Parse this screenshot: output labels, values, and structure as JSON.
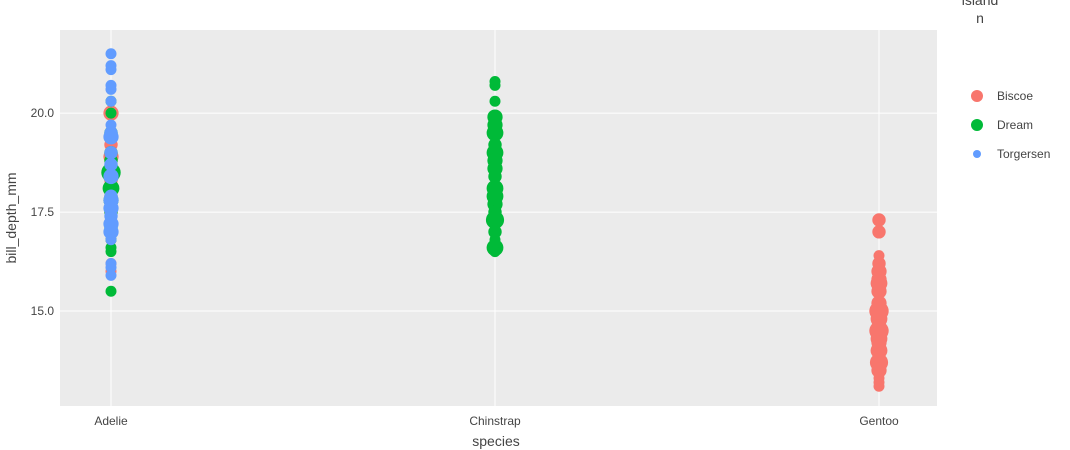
{
  "chart_data": {
    "type": "scatter",
    "xlabel": "species",
    "ylabel": "bill_depth_mm",
    "categories": [
      "Adelie",
      "Chinstrap",
      "Gentoo"
    ],
    "y_ticks": [
      15.0,
      17.5,
      20.0
    ],
    "y_tick_labels": [
      "15.0",
      "17.5",
      "20.0"
    ],
    "ylim": [
      12.6,
      22.1
    ],
    "grid": true,
    "legend": {
      "title_lines": [
        "island",
        "n"
      ],
      "position": "top-right",
      "entries": [
        {
          "name": "Biscoe",
          "color": "#F8766D"
        },
        {
          "name": "Dream",
          "color": "#00BA38"
        },
        {
          "name": "Torgersen",
          "color": "#619CFF"
        }
      ]
    },
    "series": [
      {
        "name": "Biscoe",
        "color": "#F8766D",
        "points": [
          {
            "x": "Adelie",
            "y": 20.0,
            "n": 3
          },
          {
            "x": "Adelie",
            "y": 19.2,
            "n": 2
          },
          {
            "x": "Adelie",
            "y": 18.9,
            "n": 3
          },
          {
            "x": "Adelie",
            "y": 18.6,
            "n": 2
          },
          {
            "x": "Adelie",
            "y": 18.3,
            "n": 2
          },
          {
            "x": "Adelie",
            "y": 18.1,
            "n": 2
          },
          {
            "x": "Adelie",
            "y": 17.9,
            "n": 2
          },
          {
            "x": "Adelie",
            "y": 17.5,
            "n": 2
          },
          {
            "x": "Adelie",
            "y": 17.2,
            "n": 2
          },
          {
            "x": "Adelie",
            "y": 16.8,
            "n": 1
          },
          {
            "x": "Adelie",
            "y": 16.2,
            "n": 1
          },
          {
            "x": "Adelie",
            "y": 16.0,
            "n": 1
          },
          {
            "x": "Gentoo",
            "y": 17.3,
            "n": 2
          },
          {
            "x": "Gentoo",
            "y": 17.0,
            "n": 2
          },
          {
            "x": "Gentoo",
            "y": 16.4,
            "n": 1
          },
          {
            "x": "Gentoo",
            "y": 16.2,
            "n": 2
          },
          {
            "x": "Gentoo",
            "y": 16.0,
            "n": 3
          },
          {
            "x": "Gentoo",
            "y": 15.8,
            "n": 3
          },
          {
            "x": "Gentoo",
            "y": 15.7,
            "n": 4
          },
          {
            "x": "Gentoo",
            "y": 15.5,
            "n": 3
          },
          {
            "x": "Gentoo",
            "y": 15.2,
            "n": 3
          },
          {
            "x": "Gentoo",
            "y": 15.0,
            "n": 6
          },
          {
            "x": "Gentoo",
            "y": 14.8,
            "n": 4
          },
          {
            "x": "Gentoo",
            "y": 14.6,
            "n": 3
          },
          {
            "x": "Gentoo",
            "y": 14.5,
            "n": 6
          },
          {
            "x": "Gentoo",
            "y": 14.3,
            "n": 4
          },
          {
            "x": "Gentoo",
            "y": 14.2,
            "n": 3
          },
          {
            "x": "Gentoo",
            "y": 14.0,
            "n": 4
          },
          {
            "x": "Gentoo",
            "y": 13.9,
            "n": 2
          },
          {
            "x": "Gentoo",
            "y": 13.7,
            "n": 5
          },
          {
            "x": "Gentoo",
            "y": 13.5,
            "n": 3
          },
          {
            "x": "Gentoo",
            "y": 13.3,
            "n": 1
          },
          {
            "x": "Gentoo",
            "y": 13.2,
            "n": 1
          },
          {
            "x": "Gentoo",
            "y": 13.1,
            "n": 1
          }
        ]
      },
      {
        "name": "Dream",
        "color": "#00BA38",
        "points": [
          {
            "x": "Adelie",
            "y": 20.3,
            "n": 1
          },
          {
            "x": "Adelie",
            "y": 20.0,
            "n": 1
          },
          {
            "x": "Adelie",
            "y": 19.5,
            "n": 2
          },
          {
            "x": "Adelie",
            "y": 19.0,
            "n": 2
          },
          {
            "x": "Adelie",
            "y": 18.8,
            "n": 2
          },
          {
            "x": "Adelie",
            "y": 18.5,
            "n": 6
          },
          {
            "x": "Adelie",
            "y": 18.4,
            "n": 3
          },
          {
            "x": "Adelie",
            "y": 18.1,
            "n": 4
          },
          {
            "x": "Adelie",
            "y": 17.8,
            "n": 3
          },
          {
            "x": "Adelie",
            "y": 17.5,
            "n": 2
          },
          {
            "x": "Adelie",
            "y": 17.1,
            "n": 2
          },
          {
            "x": "Adelie",
            "y": 16.8,
            "n": 1
          },
          {
            "x": "Adelie",
            "y": 16.6,
            "n": 1
          },
          {
            "x": "Adelie",
            "y": 16.5,
            "n": 1
          },
          {
            "x": "Adelie",
            "y": 15.5,
            "n": 1
          },
          {
            "x": "Chinstrap",
            "y": 20.8,
            "n": 1
          },
          {
            "x": "Chinstrap",
            "y": 20.7,
            "n": 1
          },
          {
            "x": "Chinstrap",
            "y": 20.3,
            "n": 1
          },
          {
            "x": "Chinstrap",
            "y": 19.9,
            "n": 3
          },
          {
            "x": "Chinstrap",
            "y": 19.7,
            "n": 3
          },
          {
            "x": "Chinstrap",
            "y": 19.5,
            "n": 4
          },
          {
            "x": "Chinstrap",
            "y": 19.2,
            "n": 2
          },
          {
            "x": "Chinstrap",
            "y": 19.0,
            "n": 4
          },
          {
            "x": "Chinstrap",
            "y": 18.8,
            "n": 3
          },
          {
            "x": "Chinstrap",
            "y": 18.6,
            "n": 3
          },
          {
            "x": "Chinstrap",
            "y": 18.4,
            "n": 2
          },
          {
            "x": "Chinstrap",
            "y": 18.1,
            "n": 4
          },
          {
            "x": "Chinstrap",
            "y": 17.9,
            "n": 4
          },
          {
            "x": "Chinstrap",
            "y": 17.7,
            "n": 3
          },
          {
            "x": "Chinstrap",
            "y": 17.5,
            "n": 2
          },
          {
            "x": "Chinstrap",
            "y": 17.3,
            "n": 5
          },
          {
            "x": "Chinstrap",
            "y": 17.0,
            "n": 2
          },
          {
            "x": "Chinstrap",
            "y": 16.8,
            "n": 1
          },
          {
            "x": "Chinstrap",
            "y": 16.6,
            "n": 4
          },
          {
            "x": "Chinstrap",
            "y": 16.5,
            "n": 1
          }
        ]
      },
      {
        "name": "Torgersen",
        "color": "#619CFF",
        "points": [
          {
            "x": "Adelie",
            "y": 21.5,
            "n": 1
          },
          {
            "x": "Adelie",
            "y": 21.2,
            "n": 1
          },
          {
            "x": "Adelie",
            "y": 21.1,
            "n": 1
          },
          {
            "x": "Adelie",
            "y": 20.7,
            "n": 1
          },
          {
            "x": "Adelie",
            "y": 20.6,
            "n": 1
          },
          {
            "x": "Adelie",
            "y": 20.3,
            "n": 1
          },
          {
            "x": "Adelie",
            "y": 19.7,
            "n": 1
          },
          {
            "x": "Adelie",
            "y": 19.5,
            "n": 2
          },
          {
            "x": "Adelie",
            "y": 19.4,
            "n": 3
          },
          {
            "x": "Adelie",
            "y": 19.0,
            "n": 2
          },
          {
            "x": "Adelie",
            "y": 18.7,
            "n": 2
          },
          {
            "x": "Adelie",
            "y": 18.4,
            "n": 3
          },
          {
            "x": "Adelie",
            "y": 17.9,
            "n": 2
          },
          {
            "x": "Adelie",
            "y": 17.8,
            "n": 3
          },
          {
            "x": "Adelie",
            "y": 17.6,
            "n": 3
          },
          {
            "x": "Adelie",
            "y": 17.4,
            "n": 2
          },
          {
            "x": "Adelie",
            "y": 17.2,
            "n": 3
          },
          {
            "x": "Adelie",
            "y": 17.0,
            "n": 3
          },
          {
            "x": "Adelie",
            "y": 16.8,
            "n": 1
          },
          {
            "x": "Adelie",
            "y": 16.2,
            "n": 1
          },
          {
            "x": "Adelie",
            "y": 16.1,
            "n": 1
          },
          {
            "x": "Adelie",
            "y": 15.9,
            "n": 1
          }
        ]
      }
    ]
  }
}
